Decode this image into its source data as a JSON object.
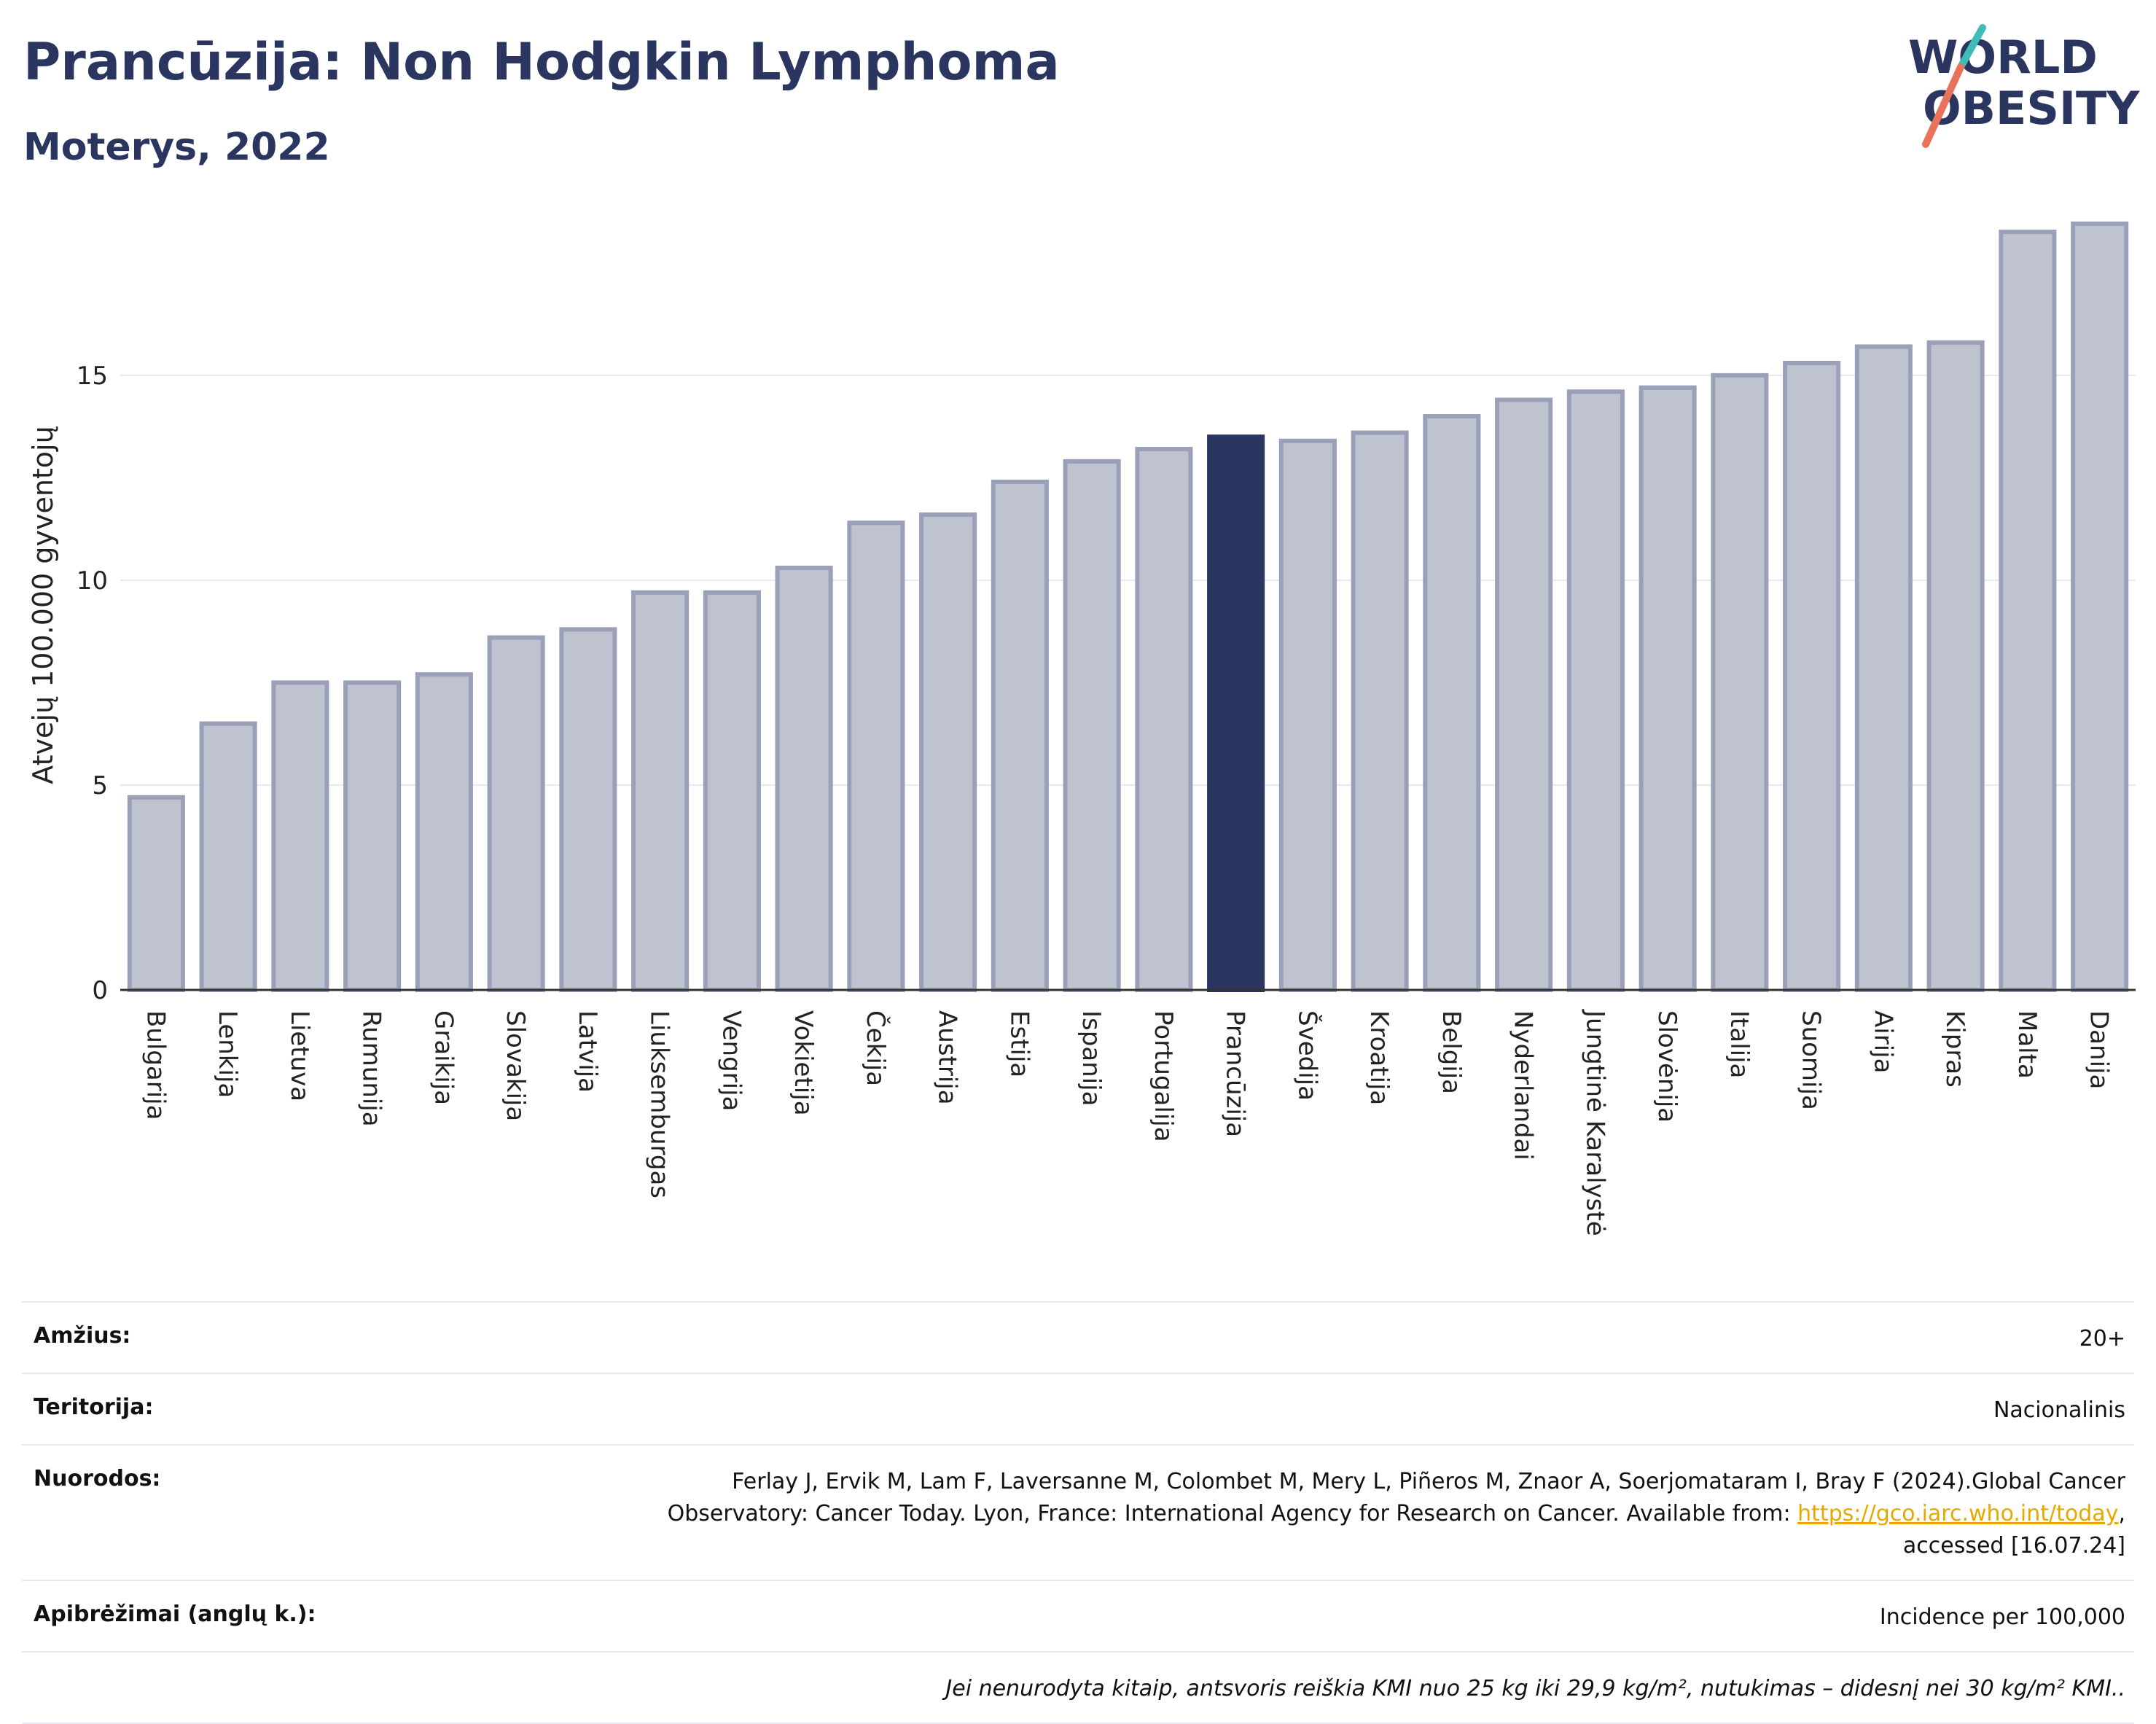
{
  "header": {
    "title": "Prancūzija: Non Hodgkin Lymphoma",
    "subtitle": "Moterys, 2022"
  },
  "logo": {
    "line1": "WORLD",
    "line2": "OBESITY"
  },
  "colors": {
    "bar": "#bfc3d0",
    "bar_edge": "#9aa0b8",
    "highlight": "#2a3560",
    "grid": "#e6e8f2"
  },
  "chart_data": {
    "type": "bar",
    "ylabel": "Atvejų 100.000 gyventojų",
    "ylim": [
      0,
      19
    ],
    "yticks": [
      0,
      5,
      10,
      15
    ],
    "highlight": "Prancūzija",
    "categories": [
      "Bulgarija",
      "Lenkija",
      "Lietuva",
      "Rumunija",
      "Graikija",
      "Slovakija",
      "Latvija",
      "Liuksemburgas",
      "Vengrija",
      "Vokietija",
      "Čekija",
      "Austrija",
      "Estija",
      "Ispanija",
      "Portugalija",
      "Prancūzija",
      "Švedija",
      "Kroatija",
      "Belgija",
      "Nyderlandai",
      "Jungtinė Karalystė",
      "Slovėnija",
      "Italija",
      "Suomija",
      "Airija",
      "Kipras",
      "Malta",
      "Danija"
    ],
    "values": [
      4.7,
      6.5,
      7.5,
      7.5,
      7.7,
      8.6,
      8.8,
      9.7,
      9.7,
      10.3,
      11.4,
      11.6,
      12.4,
      12.9,
      13.2,
      13.5,
      13.4,
      13.6,
      14.0,
      14.4,
      14.6,
      14.7,
      15.0,
      15.3,
      15.7,
      15.8,
      18.5,
      18.7
    ]
  },
  "info": {
    "age_label": "Amžius:",
    "age_value": "20+",
    "territory_label": "Teritorija:",
    "territory_value": "Nacionalinis",
    "refs_label": "Nuorodos:",
    "refs_text1": "Ferlay J, Ervik M, Lam F, Laversanne M, Colombet M, Mery L, Piñeros M, Znaor A, Soerjomataram I, Bray F (2024).Global Cancer",
    "refs_text2": "Observatory: Cancer Today. Lyon, France: International Agency for Research on Cancer. Available from: ",
    "refs_link": "https://gco.iarc.who.int/today",
    "refs_text3": "accessed [16.07.24]",
    "defs_label": "Apibrėžimai (anglų k.):",
    "defs_value": "Incidence per 100,000",
    "note": "Jei nenurodyta kitaip, antsvoris reiškia KMI nuo 25 kg iki 29,9 kg/m², nutukimas – didesnį nei 30 kg/m² KMI.."
  }
}
